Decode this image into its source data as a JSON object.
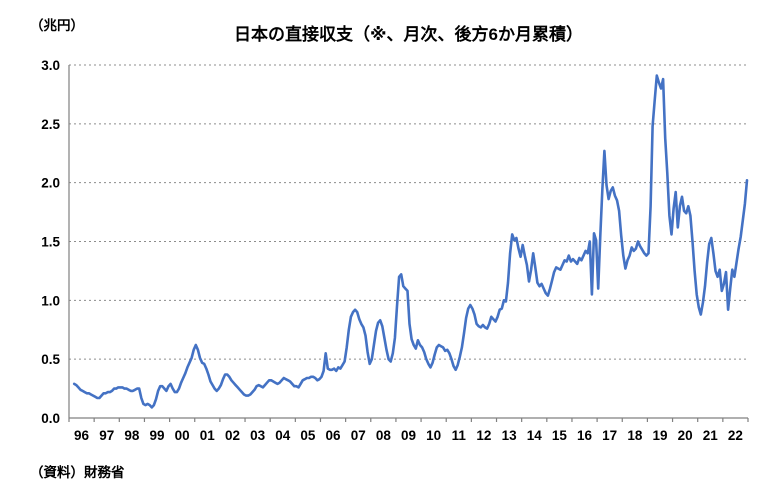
{
  "chart_data": {
    "type": "line",
    "title": "日本の直接収支（※、月次、後方6か月累積）",
    "unit_label": "（兆円）",
    "source": "（資料）財務省",
    "x_tick_labels": [
      "96",
      "97",
      "98",
      "99",
      "00",
      "01",
      "02",
      "03",
      "04",
      "05",
      "06",
      "07",
      "08",
      "09",
      "10",
      "11",
      "12",
      "13",
      "14",
      "15",
      "16",
      "17",
      "18",
      "19",
      "20",
      "21",
      "22"
    ],
    "y_ticks": [
      0,
      0.5,
      1.0,
      1.5,
      2.0,
      2.5,
      3.0
    ],
    "y_tick_labels": [
      "0.0",
      "0.5",
      "1.0",
      "1.5",
      "2.0",
      "2.5",
      "3.0"
    ],
    "ylim": [
      0,
      3.0
    ],
    "grid": "horizontal-dotted",
    "legend": "none",
    "colors": {
      "line": "#4472C4",
      "axis": "#808080",
      "grid": "#8C8C8C",
      "text": "#000000",
      "background": "#FFFFFF"
    },
    "series": [
      {
        "color": "#4472C4",
        "start": "1996-03",
        "frequency": "monthly",
        "values": [
          0.29,
          0.28,
          0.26,
          0.24,
          0.23,
          0.22,
          0.21,
          0.21,
          0.2,
          0.19,
          0.18,
          0.17,
          0.17,
          0.19,
          0.21,
          0.21,
          0.22,
          0.22,
          0.23,
          0.25,
          0.25,
          0.26,
          0.26,
          0.26,
          0.25,
          0.25,
          0.24,
          0.23,
          0.23,
          0.24,
          0.25,
          0.25,
          0.17,
          0.12,
          0.11,
          0.12,
          0.11,
          0.09,
          0.11,
          0.16,
          0.23,
          0.27,
          0.27,
          0.25,
          0.23,
          0.27,
          0.29,
          0.25,
          0.22,
          0.22,
          0.25,
          0.3,
          0.34,
          0.38,
          0.43,
          0.47,
          0.51,
          0.58,
          0.62,
          0.58,
          0.51,
          0.47,
          0.46,
          0.42,
          0.37,
          0.31,
          0.28,
          0.25,
          0.23,
          0.25,
          0.28,
          0.33,
          0.37,
          0.37,
          0.35,
          0.32,
          0.3,
          0.28,
          0.26,
          0.24,
          0.22,
          0.2,
          0.19,
          0.19,
          0.2,
          0.22,
          0.24,
          0.27,
          0.28,
          0.27,
          0.26,
          0.28,
          0.3,
          0.32,
          0.32,
          0.31,
          0.3,
          0.29,
          0.3,
          0.32,
          0.34,
          0.33,
          0.32,
          0.31,
          0.29,
          0.27,
          0.27,
          0.26,
          0.29,
          0.32,
          0.33,
          0.34,
          0.34,
          0.35,
          0.35,
          0.34,
          0.32,
          0.33,
          0.35,
          0.4,
          0.55,
          0.42,
          0.41,
          0.41,
          0.42,
          0.4,
          0.43,
          0.42,
          0.45,
          0.48,
          0.6,
          0.75,
          0.86,
          0.9,
          0.92,
          0.9,
          0.84,
          0.8,
          0.77,
          0.7,
          0.56,
          0.46,
          0.5,
          0.62,
          0.74,
          0.81,
          0.83,
          0.78,
          0.68,
          0.58,
          0.5,
          0.48,
          0.55,
          0.68,
          0.95,
          1.2,
          1.22,
          1.12,
          1.1,
          1.08,
          0.8,
          0.67,
          0.62,
          0.59,
          0.66,
          0.62,
          0.6,
          0.56,
          0.5,
          0.46,
          0.43,
          0.47,
          0.54,
          0.6,
          0.62,
          0.61,
          0.6,
          0.57,
          0.58,
          0.55,
          0.5,
          0.44,
          0.41,
          0.45,
          0.52,
          0.6,
          0.72,
          0.85,
          0.93,
          0.96,
          0.93,
          0.88,
          0.8,
          0.78,
          0.77,
          0.79,
          0.77,
          0.76,
          0.8,
          0.86,
          0.84,
          0.82,
          0.86,
          0.92,
          0.93,
          1.0,
          0.99,
          1.15,
          1.4,
          1.56,
          1.51,
          1.53,
          1.44,
          1.37,
          1.47,
          1.38,
          1.3,
          1.16,
          1.26,
          1.4,
          1.28,
          1.15,
          1.12,
          1.14,
          1.1,
          1.06,
          1.04,
          1.1,
          1.17,
          1.24,
          1.28,
          1.27,
          1.26,
          1.3,
          1.34,
          1.33,
          1.38,
          1.33,
          1.35,
          1.33,
          1.31,
          1.36,
          1.34,
          1.38,
          1.42,
          1.4,
          1.5,
          1.05,
          1.57,
          1.51,
          1.1,
          1.55,
          1.95,
          2.27,
          1.98,
          1.86,
          1.93,
          1.96,
          1.89,
          1.85,
          1.76,
          1.55,
          1.38,
          1.27,
          1.34,
          1.38,
          1.45,
          1.42,
          1.44,
          1.5,
          1.46,
          1.43,
          1.4,
          1.38,
          1.4,
          1.8,
          2.48,
          2.7,
          2.91,
          2.85,
          2.8,
          2.88,
          2.38,
          2.08,
          1.72,
          1.56,
          1.78,
          1.92,
          1.62,
          1.8,
          1.88,
          1.76,
          1.74,
          1.8,
          1.72,
          1.5,
          1.25,
          1.05,
          0.94,
          0.88,
          0.98,
          1.12,
          1.32,
          1.48,
          1.53,
          1.4,
          1.25,
          1.2,
          1.26,
          1.08,
          1.14,
          1.24,
          0.92,
          1.1,
          1.26,
          1.2,
          1.32,
          1.44,
          1.54,
          1.68,
          1.82,
          2.02
        ]
      }
    ]
  }
}
